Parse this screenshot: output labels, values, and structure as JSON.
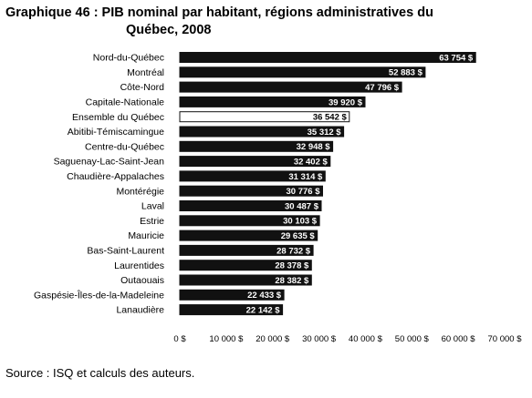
{
  "chart_data": {
    "type": "bar",
    "orientation": "horizontal",
    "title_line1": "Graphique 46 : PIB nominal par habitant, régions administratives du",
    "title_line2": "Québec, 2008",
    "categories": [
      "Nord-du-Québec",
      "Montréal",
      "Côte-Nord",
      "Capitale-Nationale",
      "Ensemble du Québec",
      "Abitibi-Témiscamingue",
      "Centre-du-Québec",
      "Saguenay-Lac-Saint-Jean",
      "Chaudière-Appalaches",
      "Montérégie",
      "Laval",
      "Estrie",
      "Mauricie",
      "Bas-Saint-Laurent",
      "Laurentides",
      "Outaouais",
      "Gaspésie-Îles-de-la-Madeleine",
      "Lanaudière"
    ],
    "values": [
      63754,
      52883,
      47796,
      39920,
      36542,
      35312,
      32948,
      32402,
      31314,
      30776,
      30487,
      30103,
      29635,
      28732,
      28378,
      28382,
      22433,
      22142
    ],
    "value_labels": [
      "63 754 $",
      "52 883 $",
      "47 796 $",
      "39 920 $",
      "36 542 $",
      "35 312 $",
      "32 948 $",
      "32 402 $",
      "31 314 $",
      "30 776 $",
      "30 487 $",
      "30 103 $",
      "29 635 $",
      "28 732 $",
      "28 378 $",
      "28 382 $",
      "22 433 $",
      "22 142 $"
    ],
    "highlight_category": "Ensemble du Québec",
    "xlim": [
      0,
      70000
    ],
    "xticks": [
      0,
      10000,
      20000,
      30000,
      40000,
      50000,
      60000,
      70000
    ],
    "xtick_labels": [
      "0 $",
      "10 000 $",
      "20 000 $",
      "30 000 $",
      "40 000 $",
      "50 000 $",
      "60 000 $",
      "70 000 $"
    ],
    "xlabel": "",
    "ylabel": "",
    "grid": false,
    "legend": "none",
    "colors": {
      "bar": "#111111",
      "highlight_bar": "#ffffff",
      "bar_outline": "#111111"
    }
  },
  "source": "Source : ISQ et calculs des auteurs."
}
